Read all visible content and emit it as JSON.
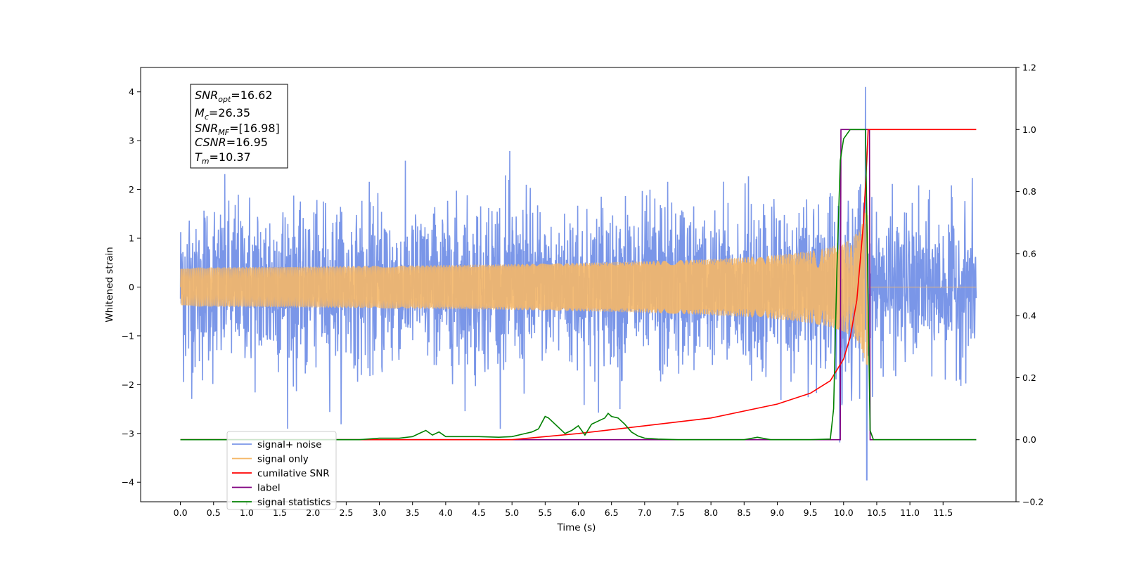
{
  "chart_data": {
    "type": "line",
    "xlabel": "Time (s)",
    "ylabel": "Whitened strain",
    "xlim": [
      -0.6,
      12.6
    ],
    "ylim": [
      -4.4,
      4.5
    ],
    "y2lim": [
      -0.2,
      1.2
    ],
    "x_ticks": [
      "0.0",
      "0.5",
      "1.0",
      "1.5",
      "2.0",
      "2.5",
      "3.0",
      "3.5",
      "4.0",
      "4.5",
      "5.0",
      "5.5",
      "6.0",
      "6.5",
      "7.0",
      "7.5",
      "8.0",
      "8.5",
      "9.0",
      "9.5",
      "10.0",
      "10.5",
      "11.0",
      "11.5"
    ],
    "y_ticks": [
      "−4",
      "−3",
      "−2",
      "−1",
      "0",
      "1",
      "2",
      "3",
      "4"
    ],
    "y2_ticks": [
      "−0.2",
      "0.0",
      "0.2",
      "0.4",
      "0.6",
      "0.8",
      "1.0",
      "1.2"
    ],
    "annotation": {
      "snr_opt_sym": "SNR",
      "snr_opt_sub": "opt",
      "snr_opt_val": "=16.62",
      "mc_sym": "M",
      "mc_sub": "c",
      "mc_val": "=26.35",
      "snr_mf_sym": "SNR",
      "snr_mf_sub": "MF",
      "snr_mf_val": "=[16.98]",
      "csnr_sym": "CSNR",
      "csnr_val": "=16.95",
      "tm_sym": "T",
      "tm_sub": "m",
      "tm_val": "=10.37"
    },
    "series": [
      {
        "name": "signal+ noise",
        "color": "#7a96e8",
        "axis": "left",
        "kind": "noise",
        "typical_amplitude": 1.6,
        "max_peak": 4.1,
        "min_peak": -3.95
      },
      {
        "name": "signal only",
        "color": "#f5b768",
        "axis": "left",
        "kind": "chirp",
        "merger_time": 10.37,
        "peak_amplitude": 1.6
      },
      {
        "name": "cumilative SNR",
        "color": "#ff0000",
        "axis": "right",
        "x": [
          0,
          5.0,
          6.0,
          7.0,
          8.0,
          9.0,
          9.5,
          9.8,
          10.0,
          10.1,
          10.2,
          10.3,
          10.35,
          10.37,
          11.5,
          12.0
        ],
        "y": [
          0.0,
          0.0,
          0.02,
          0.045,
          0.07,
          0.115,
          0.15,
          0.19,
          0.26,
          0.33,
          0.45,
          0.7,
          0.9,
          1.0,
          1.0,
          1.0
        ]
      },
      {
        "name": "label",
        "color": "#800080",
        "axis": "right",
        "x": [
          0,
          9.95,
          9.96,
          10.39,
          10.4,
          12.0
        ],
        "y": [
          0.0,
          0.0,
          1.0,
          1.0,
          0.0,
          0.0
        ]
      },
      {
        "name": "signal statistics",
        "color": "#008000",
        "axis": "right",
        "x": [
          0,
          2.7,
          3.0,
          3.3,
          3.5,
          3.6,
          3.7,
          3.8,
          3.9,
          4.0,
          4.3,
          4.5,
          4.8,
          5.0,
          5.2,
          5.3,
          5.4,
          5.5,
          5.55,
          5.7,
          5.8,
          5.9,
          6.0,
          6.1,
          6.2,
          6.3,
          6.4,
          6.45,
          6.5,
          6.6,
          6.7,
          6.8,
          6.9,
          7.0,
          7.2,
          7.5,
          8.5,
          8.7,
          8.9,
          9.5,
          9.8,
          9.85,
          9.9,
          9.95,
          10.0,
          10.1,
          10.2,
          10.3,
          10.33,
          10.4,
          10.45,
          12.0
        ],
        "y": [
          0.0,
          0.0,
          0.005,
          0.005,
          0.01,
          0.02,
          0.03,
          0.015,
          0.025,
          0.01,
          0.01,
          0.01,
          0.008,
          0.01,
          0.02,
          0.025,
          0.035,
          0.075,
          0.07,
          0.04,
          0.02,
          0.03,
          0.045,
          0.015,
          0.05,
          0.06,
          0.07,
          0.085,
          0.075,
          0.07,
          0.05,
          0.025,
          0.012,
          0.005,
          0.002,
          0.0,
          0.0,
          0.008,
          0.0,
          0.0,
          0.002,
          0.1,
          0.55,
          0.9,
          0.97,
          1.0,
          1.0,
          1.0,
          1.0,
          0.03,
          0.0,
          0.0
        ]
      }
    ],
    "legend_position": "lower-left",
    "legend": [
      {
        "label": "signal+ noise",
        "color": "#7a96e8"
      },
      {
        "label": "signal only",
        "color": "#f5b768"
      },
      {
        "label": "cumilative SNR",
        "color": "#ff0000"
      },
      {
        "label": "label",
        "color": "#800080"
      },
      {
        "label": "signal statistics",
        "color": "#008000"
      }
    ],
    "grid": false
  }
}
